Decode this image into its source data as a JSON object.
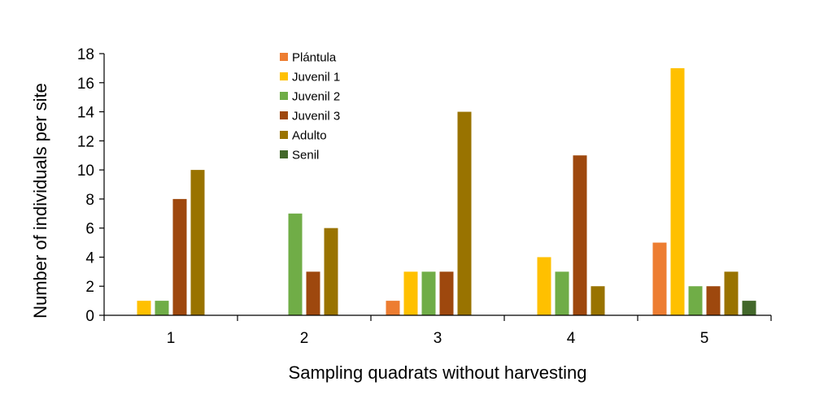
{
  "chart_data": {
    "type": "bar",
    "title": "",
    "xlabel": "Sampling quadrats without harvesting",
    "ylabel": "Number of individuals per site",
    "categories": [
      "1",
      "2",
      "3",
      "4",
      "5"
    ],
    "ylim": [
      0,
      18
    ],
    "yticks": [
      "0",
      "2",
      "4",
      "6",
      "8",
      "10",
      "12",
      "14",
      "16",
      "18"
    ],
    "grid": false,
    "legend_position": "top-center",
    "series": [
      {
        "name": "Plántula",
        "color": "#ED7D31",
        "values": [
          0,
          0,
          1,
          0,
          5
        ]
      },
      {
        "name": "Juvenil 1",
        "color": "#FFC000",
        "values": [
          1,
          0,
          3,
          4,
          17
        ]
      },
      {
        "name": "Juvenil 2",
        "color": "#70AD47",
        "values": [
          1,
          7,
          3,
          3,
          2
        ]
      },
      {
        "name": "Juvenil 3",
        "color": "#9E480E",
        "values": [
          8,
          3,
          3,
          11,
          2
        ]
      },
      {
        "name": "Adulto",
        "color": "#997300",
        "values": [
          10,
          6,
          14,
          2,
          3
        ]
      },
      {
        "name": "Senil",
        "color": "#43682B",
        "values": [
          0,
          0,
          0,
          0,
          1
        ]
      }
    ]
  }
}
